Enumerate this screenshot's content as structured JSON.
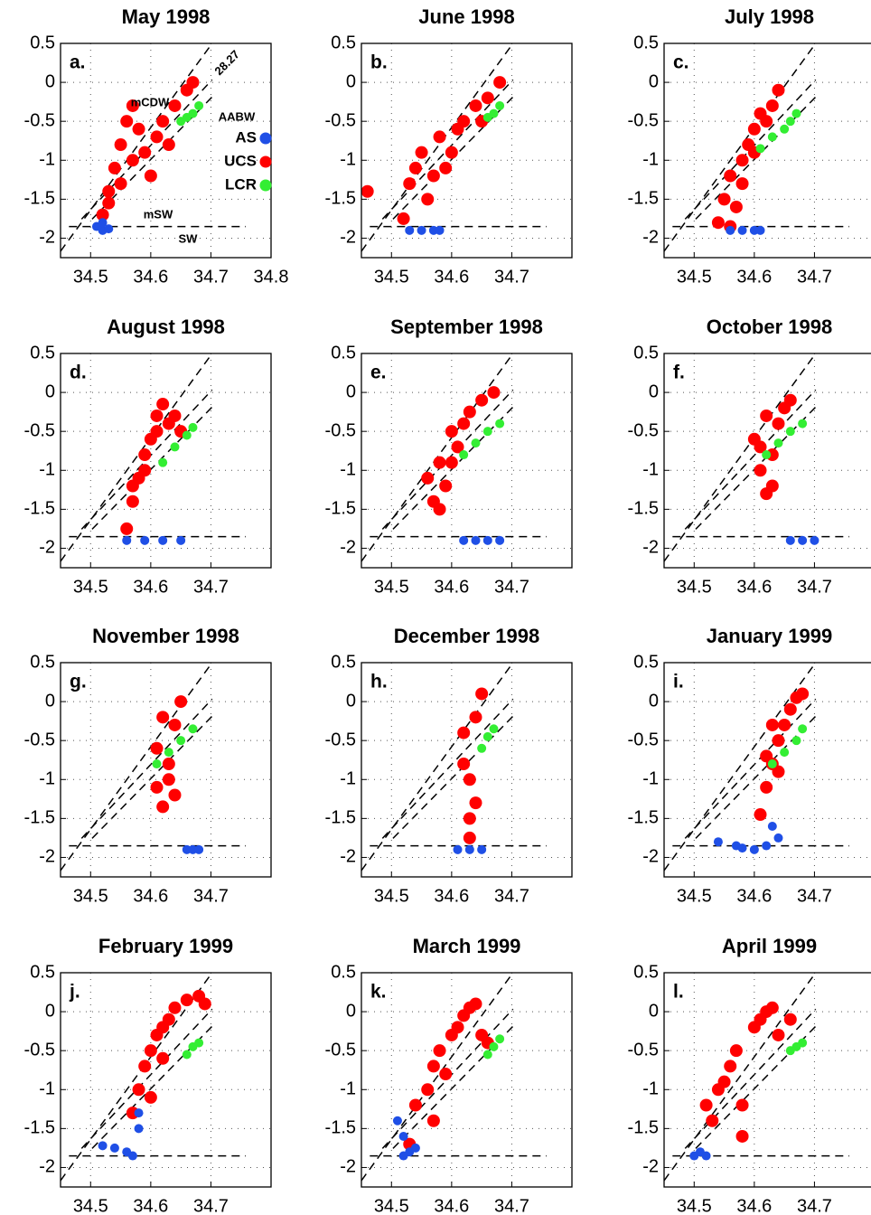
{
  "chart_data": [
    {
      "type": "scatter",
      "title": "May 1998",
      "panel_label": "a.",
      "annotations": [
        "28.27",
        "mCDW",
        "AABW",
        "mSW",
        "SW"
      ],
      "xlim": [
        34.45,
        34.8
      ],
      "ylim": [
        -2.25,
        0.5
      ],
      "xticks": [
        34.5,
        34.6,
        34.7,
        34.8
      ],
      "yticks": [
        0.5,
        0,
        -0.5,
        -1,
        -1.5,
        -2
      ],
      "grid": true,
      "series": [
        {
          "name": "AS",
          "color": "#1f4fe6",
          "x": [
            34.51,
            34.52,
            34.53,
            34.52
          ],
          "y": [
            -1.85,
            -1.9,
            -1.88,
            -1.8
          ]
        },
        {
          "name": "UCS",
          "color": "#ff0000",
          "x": [
            34.52,
            34.53,
            34.54,
            34.55,
            34.56,
            34.57,
            34.58,
            34.59,
            34.6,
            34.62,
            34.64,
            34.66,
            34.55,
            34.57,
            34.61,
            34.63,
            34.67,
            34.53
          ],
          "y": [
            -1.7,
            -1.4,
            -1.1,
            -0.8,
            -0.5,
            -0.3,
            -0.6,
            -0.9,
            -1.2,
            -0.5,
            -0.3,
            -0.1,
            -1.3,
            -1.0,
            -0.7,
            -0.8,
            0.0,
            -1.55
          ]
        },
        {
          "name": "LCR",
          "color": "#33ee33",
          "x": [
            34.65,
            34.66,
            34.67,
            34.68
          ],
          "y": [
            -0.5,
            -0.45,
            -0.4,
            -0.3
          ]
        }
      ]
    },
    {
      "type": "scatter",
      "title": "June 1998",
      "panel_label": "b.",
      "xlim": [
        34.45,
        34.8
      ],
      "ylim": [
        -2.25,
        0.5
      ],
      "xticks": [
        34.5,
        34.6,
        34.7
      ],
      "yticks": [
        0.5,
        0,
        -0.5,
        -1,
        -1.5,
        -2
      ],
      "grid": true,
      "series": [
        {
          "color": "#1f4fe6",
          "x": [
            34.53,
            34.55,
            34.57,
            34.58
          ],
          "y": [
            -1.9,
            -1.9,
            -1.9,
            -1.9
          ]
        },
        {
          "color": "#ff0000",
          "x": [
            34.46,
            34.52,
            34.53,
            34.55,
            34.56,
            34.58,
            34.6,
            34.62,
            34.64,
            34.66,
            34.68,
            34.54,
            34.57,
            34.61,
            34.59,
            34.65
          ],
          "y": [
            -1.4,
            -1.75,
            -1.3,
            -0.9,
            -1.5,
            -0.7,
            -0.9,
            -0.5,
            -0.3,
            -0.2,
            0.0,
            -1.1,
            -1.2,
            -0.6,
            -1.1,
            -0.5
          ]
        },
        {
          "color": "#33ee33",
          "x": [
            34.66,
            34.67,
            34.68
          ],
          "y": [
            -0.45,
            -0.4,
            -0.3
          ]
        }
      ]
    },
    {
      "type": "scatter",
      "title": "July 1998",
      "panel_label": "c.",
      "xlim": [
        34.45,
        34.8
      ],
      "ylim": [
        -2.25,
        0.5
      ],
      "xticks": [
        34.5,
        34.6,
        34.7
      ],
      "yticks": [
        0.5,
        0,
        -0.5,
        -1,
        -1.5,
        -2
      ],
      "grid": true,
      "series": [
        {
          "color": "#1f4fe6",
          "x": [
            34.56,
            34.58,
            34.6,
            34.61
          ],
          "y": [
            -1.9,
            -1.9,
            -1.9,
            -1.9
          ]
        },
        {
          "color": "#ff0000",
          "x": [
            34.54,
            34.55,
            34.56,
            34.57,
            34.58,
            34.59,
            34.6,
            34.61,
            34.62,
            34.63,
            34.64,
            34.56,
            34.58,
            34.6
          ],
          "y": [
            -1.8,
            -1.5,
            -1.2,
            -1.6,
            -1.0,
            -0.8,
            -0.6,
            -0.4,
            -0.5,
            -0.3,
            -0.1,
            -1.85,
            -1.3,
            -0.9
          ]
        },
        {
          "color": "#33ee33",
          "x": [
            34.61,
            34.63,
            34.65,
            34.66,
            34.67
          ],
          "y": [
            -0.85,
            -0.7,
            -0.6,
            -0.5,
            -0.4
          ]
        }
      ]
    },
    {
      "type": "scatter",
      "title": "August 1998",
      "panel_label": "d.",
      "xlim": [
        34.45,
        34.8
      ],
      "ylim": [
        -2.25,
        0.5
      ],
      "xticks": [
        34.5,
        34.6,
        34.7
      ],
      "yticks": [
        0.5,
        0,
        -0.5,
        -1,
        -1.5,
        -2
      ],
      "grid": true,
      "series": [
        {
          "color": "#1f4fe6",
          "x": [
            34.56,
            34.59,
            34.62,
            34.65
          ],
          "y": [
            -1.9,
            -1.9,
            -1.9,
            -1.9
          ]
        },
        {
          "color": "#ff0000",
          "x": [
            34.56,
            34.57,
            34.58,
            34.59,
            34.6,
            34.61,
            34.62,
            34.63,
            34.64,
            34.57,
            34.59,
            34.61,
            34.65
          ],
          "y": [
            -1.75,
            -1.4,
            -1.1,
            -0.8,
            -0.6,
            -0.3,
            -0.15,
            -0.4,
            -0.3,
            -1.2,
            -1.0,
            -0.5,
            -0.5
          ]
        },
        {
          "color": "#33ee33",
          "x": [
            34.62,
            34.64,
            34.66,
            34.67
          ],
          "y": [
            -0.9,
            -0.7,
            -0.55,
            -0.45
          ]
        }
      ]
    },
    {
      "type": "scatter",
      "title": "September 1998",
      "panel_label": "e.",
      "xlim": [
        34.45,
        34.8
      ],
      "ylim": [
        -2.25,
        0.5
      ],
      "xticks": [
        34.5,
        34.6,
        34.7
      ],
      "yticks": [
        0.5,
        0,
        -0.5,
        -1,
        -1.5,
        -2
      ],
      "grid": true,
      "series": [
        {
          "color": "#1f4fe6",
          "x": [
            34.62,
            34.64,
            34.66,
            34.68
          ],
          "y": [
            -1.9,
            -1.9,
            -1.9,
            -1.9
          ]
        },
        {
          "color": "#ff0000",
          "x": [
            34.56,
            34.57,
            34.58,
            34.59,
            34.6,
            34.61,
            34.62,
            34.63,
            34.65,
            34.67,
            34.58,
            34.6
          ],
          "y": [
            -1.1,
            -1.4,
            -1.5,
            -1.2,
            -0.9,
            -0.7,
            -0.4,
            -0.25,
            -0.1,
            0.0,
            -0.9,
            -0.5
          ]
        },
        {
          "color": "#33ee33",
          "x": [
            34.62,
            34.64,
            34.66,
            34.68
          ],
          "y": [
            -0.8,
            -0.65,
            -0.5,
            -0.4
          ]
        }
      ]
    },
    {
      "type": "scatter",
      "title": "October 1998",
      "panel_label": "f.",
      "xlim": [
        34.45,
        34.8
      ],
      "ylim": [
        -2.25,
        0.5
      ],
      "xticks": [
        34.5,
        34.6,
        34.7
      ],
      "yticks": [
        0.5,
        0,
        -0.5,
        -1,
        -1.5,
        -2
      ],
      "grid": true,
      "series": [
        {
          "color": "#1f4fe6",
          "x": [
            34.66,
            34.68,
            34.7
          ],
          "y": [
            -1.9,
            -1.9,
            -1.9
          ]
        },
        {
          "color": "#ff0000",
          "x": [
            34.6,
            34.61,
            34.62,
            34.63,
            34.64,
            34.65,
            34.66,
            34.61,
            34.63,
            34.62
          ],
          "y": [
            -0.6,
            -1.0,
            -1.3,
            -0.8,
            -0.4,
            -0.2,
            -0.1,
            -0.7,
            -1.2,
            -0.3
          ]
        },
        {
          "color": "#33ee33",
          "x": [
            34.62,
            34.64,
            34.66,
            34.68
          ],
          "y": [
            -0.8,
            -0.65,
            -0.5,
            -0.4
          ]
        }
      ]
    },
    {
      "type": "scatter",
      "title": "November 1998",
      "panel_label": "g.",
      "xlim": [
        34.45,
        34.8
      ],
      "ylim": [
        -2.25,
        0.5
      ],
      "xticks": [
        34.5,
        34.6,
        34.7
      ],
      "yticks": [
        0.5,
        0,
        -0.5,
        -1,
        -1.5,
        -2
      ],
      "grid": true,
      "series": [
        {
          "color": "#1f4fe6",
          "x": [
            34.66,
            34.67,
            34.68
          ],
          "y": [
            -1.9,
            -1.9,
            -1.9
          ]
        },
        {
          "color": "#ff0000",
          "x": [
            34.61,
            34.62,
            34.63,
            34.64,
            34.65,
            34.62,
            34.63,
            34.64,
            34.61
          ],
          "y": [
            -0.6,
            -1.35,
            -1.0,
            -0.3,
            0.0,
            -0.2,
            -0.8,
            -1.2,
            -1.1
          ]
        },
        {
          "color": "#33ee33",
          "x": [
            34.61,
            34.63,
            34.65,
            34.67
          ],
          "y": [
            -0.8,
            -0.65,
            -0.5,
            -0.35
          ]
        }
      ]
    },
    {
      "type": "scatter",
      "title": "December 1998",
      "panel_label": "h.",
      "xlim": [
        34.45,
        34.8
      ],
      "ylim": [
        -2.25,
        0.5
      ],
      "xticks": [
        34.5,
        34.6,
        34.7
      ],
      "yticks": [
        0.5,
        0,
        -0.5,
        -1,
        -1.5,
        -2
      ],
      "grid": true,
      "series": [
        {
          "color": "#1f4fe6",
          "x": [
            34.61,
            34.63,
            34.65
          ],
          "y": [
            -1.9,
            -1.9,
            -1.9
          ]
        },
        {
          "color": "#ff0000",
          "x": [
            34.62,
            34.63,
            34.64,
            34.65,
            34.63,
            34.62,
            34.64,
            34.63
          ],
          "y": [
            -0.4,
            -1.0,
            -0.2,
            0.1,
            -1.5,
            -0.8,
            -1.3,
            -1.75
          ]
        },
        {
          "color": "#33ee33",
          "x": [
            34.65,
            34.66,
            34.67
          ],
          "y": [
            -0.6,
            -0.45,
            -0.35
          ]
        }
      ]
    },
    {
      "type": "scatter",
      "title": "January 1999",
      "panel_label": "i.",
      "xlim": [
        34.45,
        34.8
      ],
      "ylim": [
        -2.25,
        0.5
      ],
      "xticks": [
        34.5,
        34.6,
        34.7
      ],
      "yticks": [
        0.5,
        0,
        -0.5,
        -1,
        -1.5,
        -2
      ],
      "grid": true,
      "series": [
        {
          "color": "#1f4fe6",
          "x": [
            34.54,
            34.57,
            34.6,
            34.62,
            34.63,
            34.64,
            34.58
          ],
          "y": [
            -1.8,
            -1.85,
            -1.9,
            -1.85,
            -1.6,
            -1.75,
            -1.88
          ]
        },
        {
          "color": "#ff0000",
          "x": [
            34.61,
            34.62,
            34.63,
            34.64,
            34.65,
            34.66,
            34.67,
            34.68,
            34.62,
            34.64,
            34.63
          ],
          "y": [
            -1.45,
            -1.1,
            -0.8,
            -0.5,
            -0.3,
            -0.1,
            0.05,
            0.1,
            -0.7,
            -0.9,
            -0.3
          ]
        },
        {
          "color": "#33ee33",
          "x": [
            34.63,
            34.65,
            34.67,
            34.68
          ],
          "y": [
            -0.8,
            -0.65,
            -0.5,
            -0.35
          ]
        }
      ]
    },
    {
      "type": "scatter",
      "title": "February 1999",
      "panel_label": "j.",
      "xlim": [
        34.45,
        34.8
      ],
      "ylim": [
        -2.25,
        0.5
      ],
      "xticks": [
        34.5,
        34.6,
        34.7
      ],
      "yticks": [
        0.5,
        0,
        -0.5,
        -1,
        -1.5,
        -2
      ],
      "grid": true,
      "series": [
        {
          "color": "#1f4fe6",
          "x": [
            34.52,
            34.54,
            34.56,
            34.58,
            34.58,
            34.57
          ],
          "y": [
            -1.72,
            -1.75,
            -1.8,
            -1.5,
            -1.3,
            -1.85
          ]
        },
        {
          "color": "#ff0000",
          "x": [
            34.57,
            34.58,
            34.59,
            34.6,
            34.61,
            34.62,
            34.63,
            34.64,
            34.66,
            34.68,
            34.69,
            34.6,
            34.62
          ],
          "y": [
            -1.3,
            -1.0,
            -0.7,
            -0.5,
            -0.3,
            -0.2,
            -0.1,
            0.05,
            0.15,
            0.2,
            0.1,
            -1.1,
            -0.6
          ]
        },
        {
          "color": "#33ee33",
          "x": [
            34.66,
            34.67,
            34.68
          ],
          "y": [
            -0.55,
            -0.45,
            -0.4
          ]
        }
      ]
    },
    {
      "type": "scatter",
      "title": "March 1999",
      "panel_label": "k.",
      "xlim": [
        34.45,
        34.8
      ],
      "ylim": [
        -2.25,
        0.5
      ],
      "xticks": [
        34.5,
        34.6,
        34.7
      ],
      "yticks": [
        0.5,
        0,
        -0.5,
        -1,
        -1.5,
        -2
      ],
      "grid": true,
      "series": [
        {
          "color": "#1f4fe6",
          "x": [
            34.51,
            34.52,
            34.53,
            34.52,
            34.54
          ],
          "y": [
            -1.4,
            -1.6,
            -1.8,
            -1.85,
            -1.75
          ]
        },
        {
          "color": "#ff0000",
          "x": [
            34.53,
            34.54,
            34.56,
            34.57,
            34.58,
            34.59,
            34.6,
            34.61,
            34.62,
            34.63,
            34.64,
            34.65,
            34.66,
            34.57
          ],
          "y": [
            -1.7,
            -1.2,
            -1.0,
            -0.7,
            -0.5,
            -0.8,
            -0.3,
            -0.2,
            -0.05,
            0.05,
            0.1,
            -0.3,
            -0.4,
            -1.4
          ]
        },
        {
          "color": "#33ee33",
          "x": [
            34.66,
            34.67,
            34.68
          ],
          "y": [
            -0.55,
            -0.45,
            -0.35
          ]
        }
      ]
    },
    {
      "type": "scatter",
      "title": "April 1999",
      "panel_label": "l.",
      "xlim": [
        34.45,
        34.8
      ],
      "ylim": [
        -2.25,
        0.5
      ],
      "xticks": [
        34.5,
        34.6,
        34.7
      ],
      "yticks": [
        0.5,
        0,
        -0.5,
        -1,
        -1.5,
        -2
      ],
      "grid": true,
      "series": [
        {
          "color": "#1f4fe6",
          "x": [
            34.5,
            34.51,
            34.52
          ],
          "y": [
            -1.85,
            -1.8,
            -1.85
          ]
        },
        {
          "color": "#ff0000",
          "x": [
            34.52,
            34.53,
            34.54,
            34.56,
            34.57,
            34.58,
            34.6,
            34.61,
            34.62,
            34.63,
            34.64,
            34.66,
            34.58,
            34.55
          ],
          "y": [
            -1.2,
            -1.4,
            -1.0,
            -0.7,
            -0.5,
            -1.6,
            -0.2,
            -0.1,
            0.0,
            0.05,
            -0.3,
            -0.1,
            -1.2,
            -0.9
          ]
        },
        {
          "color": "#33ee33",
          "x": [
            34.66,
            34.67,
            34.68
          ],
          "y": [
            -0.5,
            -0.45,
            -0.4
          ]
        }
      ]
    }
  ]
}
